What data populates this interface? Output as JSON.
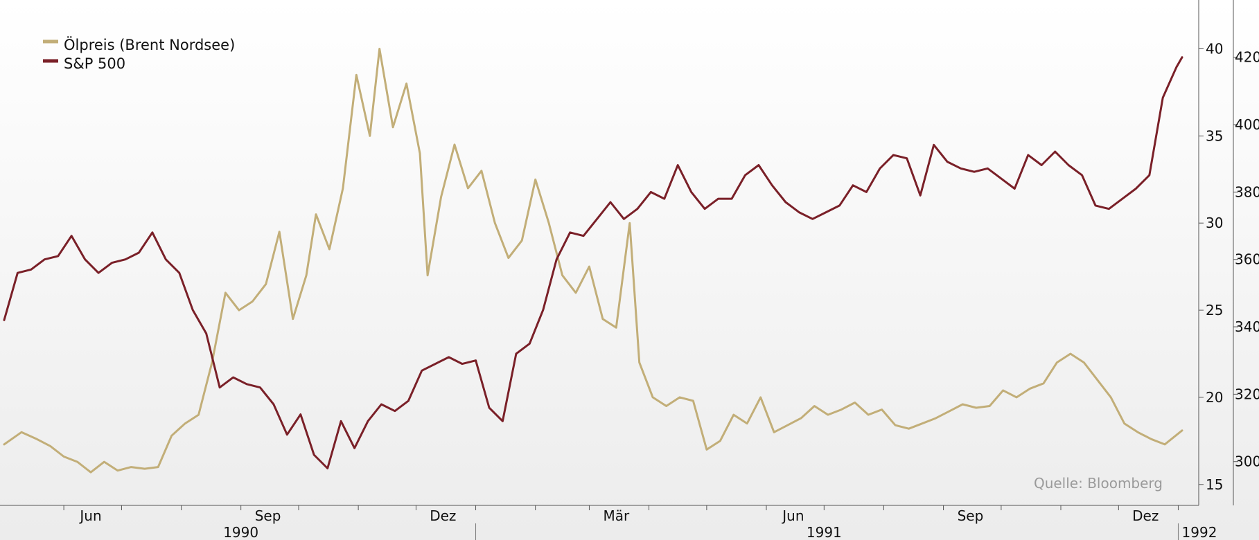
{
  "chart_data": {
    "type": "line",
    "x_range": [
      "1990-05-01",
      "1992-01-03"
    ],
    "y_left": {
      "axis": "S&P 500",
      "range": [
        287,
        437
      ]
    },
    "y_right": {
      "axis": "Ölpreis (Brent Nordsee)",
      "range": [
        13.8,
        42.8
      ],
      "ticks": [
        15,
        20,
        25,
        30,
        35,
        40
      ]
    },
    "y_right_outer": {
      "range": [
        287,
        437
      ],
      "ticks": [
        300,
        320,
        340,
        360,
        380,
        400,
        420
      ]
    },
    "x_month_labels": [
      {
        "date": "1990-06-15",
        "label": "Jun"
      },
      {
        "date": "1990-09-15",
        "label": "Sep"
      },
      {
        "date": "1990-12-15",
        "label": "Dez"
      },
      {
        "date": "1991-03-15",
        "label": "Mär"
      },
      {
        "date": "1991-06-15",
        "label": "Jun"
      },
      {
        "date": "1991-09-15",
        "label": "Sep"
      },
      {
        "date": "1991-12-15",
        "label": "Dez"
      }
    ],
    "x_year_labels": [
      {
        "date": "1990-09-01",
        "label": "1990"
      },
      {
        "date": "1991-07-01",
        "label": "1991"
      },
      {
        "date": "1992-01-12",
        "label": "1992"
      }
    ],
    "year_separators": [
      "1991-01-01",
      "1992-01-01"
    ],
    "legend": {
      "position": "top-left"
    },
    "grid": false,
    "source": "Quelle: Bloomberg",
    "series": [
      {
        "name": "Ölpreis (Brent Nordsee)",
        "axis": "right",
        "color": "#c2ae78",
        "points": [
          [
            "1990-05-01",
            17.3
          ],
          [
            "1990-05-10",
            18.0
          ],
          [
            "1990-05-18",
            17.6
          ],
          [
            "1990-05-25",
            17.2
          ],
          [
            "1990-06-01",
            16.6
          ],
          [
            "1990-06-08",
            16.3
          ],
          [
            "1990-06-15",
            15.7
          ],
          [
            "1990-06-22",
            16.3
          ],
          [
            "1990-06-29",
            15.8
          ],
          [
            "1990-07-06",
            16.0
          ],
          [
            "1990-07-13",
            15.9
          ],
          [
            "1990-07-20",
            16.0
          ],
          [
            "1990-07-27",
            17.8
          ],
          [
            "1990-08-03",
            18.5
          ],
          [
            "1990-08-10",
            19.0
          ],
          [
            "1990-08-17",
            22.0
          ],
          [
            "1990-08-24",
            26.0
          ],
          [
            "1990-08-31",
            25.0
          ],
          [
            "1990-09-07",
            25.5
          ],
          [
            "1990-09-14",
            26.5
          ],
          [
            "1990-09-21",
            29.5
          ],
          [
            "1990-09-28",
            24.5
          ],
          [
            "1990-10-05",
            27.0
          ],
          [
            "1990-10-10",
            30.5
          ],
          [
            "1990-10-17",
            28.5
          ],
          [
            "1990-10-24",
            32.0
          ],
          [
            "1990-10-31",
            38.5
          ],
          [
            "1990-11-07",
            35.0
          ],
          [
            "1990-11-12",
            40.0
          ],
          [
            "1990-11-19",
            35.5
          ],
          [
            "1990-11-26",
            38.0
          ],
          [
            "1990-12-03",
            34.0
          ],
          [
            "1990-12-07",
            27.0
          ],
          [
            "1990-12-14",
            31.5
          ],
          [
            "1990-12-21",
            34.5
          ],
          [
            "1990-12-28",
            32.0
          ],
          [
            "1991-01-04",
            33.0
          ],
          [
            "1991-01-11",
            30.0
          ],
          [
            "1991-01-18",
            28.0
          ],
          [
            "1991-01-25",
            29.0
          ],
          [
            "1991-02-01",
            32.5
          ],
          [
            "1991-02-08",
            30.0
          ],
          [
            "1991-02-15",
            27.0
          ],
          [
            "1991-02-22",
            26.0
          ],
          [
            "1991-03-01",
            27.5
          ],
          [
            "1991-03-08",
            24.5
          ],
          [
            "1991-03-15",
            24.0
          ],
          [
            "1991-03-22",
            30.0
          ],
          [
            "1991-03-27",
            22.0
          ],
          [
            "1991-04-03",
            20.0
          ],
          [
            "1991-04-10",
            19.5
          ],
          [
            "1991-04-17",
            20.0
          ],
          [
            "1991-04-24",
            19.8
          ],
          [
            "1991-05-01",
            17.0
          ],
          [
            "1991-05-08",
            17.5
          ],
          [
            "1991-05-15",
            19.0
          ],
          [
            "1991-05-22",
            18.5
          ],
          [
            "1991-05-29",
            20.0
          ],
          [
            "1991-06-05",
            18.0
          ],
          [
            "1991-06-12",
            18.4
          ],
          [
            "1991-06-19",
            18.8
          ],
          [
            "1991-06-26",
            19.5
          ],
          [
            "1991-07-03",
            19.0
          ],
          [
            "1991-07-10",
            19.3
          ],
          [
            "1991-07-17",
            19.7
          ],
          [
            "1991-07-24",
            19.0
          ],
          [
            "1991-07-31",
            19.3
          ],
          [
            "1991-08-07",
            18.4
          ],
          [
            "1991-08-14",
            18.2
          ],
          [
            "1991-08-21",
            18.5
          ],
          [
            "1991-08-28",
            18.8
          ],
          [
            "1991-09-04",
            19.2
          ],
          [
            "1991-09-11",
            19.6
          ],
          [
            "1991-09-18",
            19.4
          ],
          [
            "1991-09-25",
            19.5
          ],
          [
            "1991-10-02",
            20.4
          ],
          [
            "1991-10-09",
            20.0
          ],
          [
            "1991-10-16",
            20.5
          ],
          [
            "1991-10-23",
            20.8
          ],
          [
            "1991-10-30",
            22.0
          ],
          [
            "1991-11-06",
            22.5
          ],
          [
            "1991-11-13",
            22.0
          ],
          [
            "1991-11-20",
            21.0
          ],
          [
            "1991-11-27",
            20.0
          ],
          [
            "1991-12-04",
            18.5
          ],
          [
            "1991-12-11",
            18.0
          ],
          [
            "1991-12-18",
            17.6
          ],
          [
            "1991-12-25",
            17.3
          ],
          [
            "1992-01-03",
            18.1
          ]
        ]
      },
      {
        "name": "S&P 500",
        "axis": "left",
        "color": "#7a2028",
        "points": [
          [
            "1990-05-01",
            342
          ],
          [
            "1990-05-08",
            356
          ],
          [
            "1990-05-15",
            357
          ],
          [
            "1990-05-22",
            360
          ],
          [
            "1990-05-29",
            361
          ],
          [
            "1990-06-05",
            367
          ],
          [
            "1990-06-12",
            360
          ],
          [
            "1990-06-19",
            356
          ],
          [
            "1990-06-26",
            359
          ],
          [
            "1990-07-03",
            360
          ],
          [
            "1990-07-10",
            362
          ],
          [
            "1990-07-17",
            368
          ],
          [
            "1990-07-24",
            360
          ],
          [
            "1990-07-31",
            356
          ],
          [
            "1990-08-07",
            345
          ],
          [
            "1990-08-14",
            338
          ],
          [
            "1990-08-21",
            322
          ],
          [
            "1990-08-28",
            325
          ],
          [
            "1990-09-04",
            323
          ],
          [
            "1990-09-11",
            322
          ],
          [
            "1990-09-18",
            317
          ],
          [
            "1990-09-25",
            308
          ],
          [
            "1990-10-02",
            314
          ],
          [
            "1990-10-09",
            302
          ],
          [
            "1990-10-16",
            298
          ],
          [
            "1990-10-23",
            312
          ],
          [
            "1990-10-30",
            304
          ],
          [
            "1990-11-06",
            312
          ],
          [
            "1990-11-13",
            317
          ],
          [
            "1990-11-20",
            315
          ],
          [
            "1990-11-27",
            318
          ],
          [
            "1990-12-04",
            327
          ],
          [
            "1990-12-11",
            329
          ],
          [
            "1990-12-18",
            331
          ],
          [
            "1990-12-25",
            329
          ],
          [
            "1991-01-01",
            330
          ],
          [
            "1991-01-08",
            316
          ],
          [
            "1991-01-15",
            312
          ],
          [
            "1991-01-22",
            332
          ],
          [
            "1991-01-29",
            335
          ],
          [
            "1991-02-05",
            345
          ],
          [
            "1991-02-12",
            360
          ],
          [
            "1991-02-19",
            368
          ],
          [
            "1991-02-26",
            367
          ],
          [
            "1991-03-05",
            372
          ],
          [
            "1991-03-12",
            377
          ],
          [
            "1991-03-19",
            372
          ],
          [
            "1991-03-26",
            375
          ],
          [
            "1991-04-02",
            380
          ],
          [
            "1991-04-09",
            378
          ],
          [
            "1991-04-16",
            388
          ],
          [
            "1991-04-23",
            380
          ],
          [
            "1991-04-30",
            375
          ],
          [
            "1991-05-07",
            378
          ],
          [
            "1991-05-14",
            378
          ],
          [
            "1991-05-21",
            385
          ],
          [
            "1991-05-28",
            388
          ],
          [
            "1991-06-04",
            382
          ],
          [
            "1991-06-11",
            377
          ],
          [
            "1991-06-18",
            374
          ],
          [
            "1991-06-25",
            372
          ],
          [
            "1991-07-02",
            374
          ],
          [
            "1991-07-09",
            376
          ],
          [
            "1991-07-16",
            382
          ],
          [
            "1991-07-23",
            380
          ],
          [
            "1991-07-30",
            387
          ],
          [
            "1991-08-06",
            391
          ],
          [
            "1991-08-13",
            390
          ],
          [
            "1991-08-20",
            379
          ],
          [
            "1991-08-27",
            394
          ],
          [
            "1991-09-03",
            389
          ],
          [
            "1991-09-10",
            387
          ],
          [
            "1991-09-17",
            386
          ],
          [
            "1991-09-24",
            387
          ],
          [
            "1991-10-01",
            384
          ],
          [
            "1991-10-08",
            381
          ],
          [
            "1991-10-15",
            391
          ],
          [
            "1991-10-22",
            388
          ],
          [
            "1991-10-29",
            392
          ],
          [
            "1991-11-05",
            388
          ],
          [
            "1991-11-12",
            385
          ],
          [
            "1991-11-19",
            376
          ],
          [
            "1991-11-26",
            375
          ],
          [
            "1991-12-03",
            378
          ],
          [
            "1991-12-10",
            381
          ],
          [
            "1991-12-17",
            385
          ],
          [
            "1991-12-24",
            408
          ],
          [
            "1991-12-31",
            417
          ],
          [
            "1992-01-03",
            420
          ]
        ]
      }
    ]
  }
}
